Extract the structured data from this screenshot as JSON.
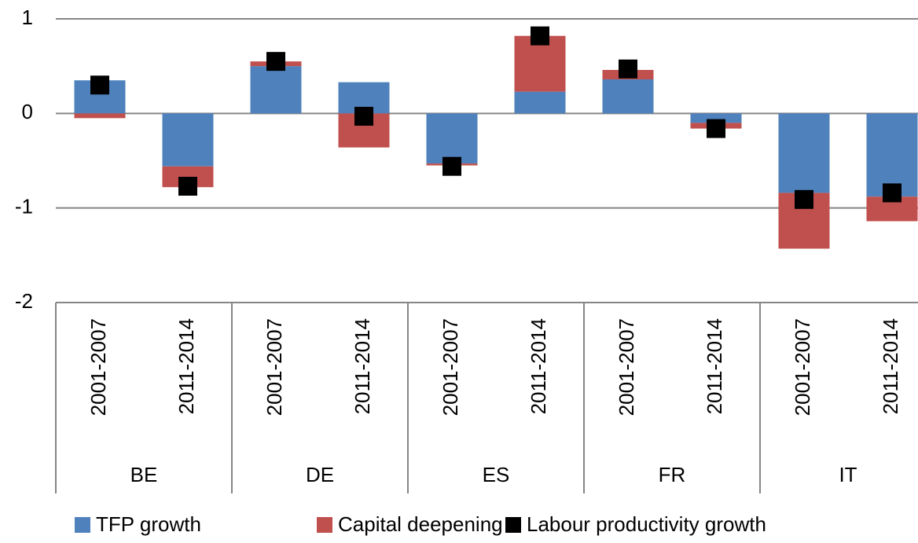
{
  "chart_data": {
    "type": "bar",
    "stacked": true,
    "categories": [
      "2001-2007",
      "2011-2014",
      "2001-2007",
      "2011-2014",
      "2001-2007",
      "2011-2014",
      "2001-2007",
      "2011-2014",
      "2001-2007",
      "2011-2014"
    ],
    "groups": [
      "BE",
      "DE",
      "ES",
      "FR",
      "IT"
    ],
    "series": [
      {
        "name": "TFP growth",
        "type": "bar",
        "color": "#4f81bd",
        "values": [
          0.35,
          -0.56,
          0.5,
          0.33,
          -0.53,
          0.23,
          0.36,
          -0.1,
          -0.84,
          -0.88
        ]
      },
      {
        "name": "Capital deepening",
        "type": "bar",
        "color": "#c0504d",
        "values": [
          -0.05,
          -0.22,
          0.05,
          -0.36,
          -0.02,
          0.59,
          0.1,
          -0.06,
          -0.59,
          -0.26
        ]
      },
      {
        "name": "Labour productivity growth",
        "type": "marker",
        "color": "#000000",
        "values": [
          0.3,
          -0.77,
          0.55,
          -0.03,
          -0.56,
          0.82,
          0.47,
          -0.16,
          -0.91,
          -0.84
        ]
      }
    ],
    "ylim": [
      -2,
      1
    ],
    "yticks": [
      -2,
      -1,
      0,
      1
    ],
    "grid": true,
    "legend": "bottom"
  }
}
